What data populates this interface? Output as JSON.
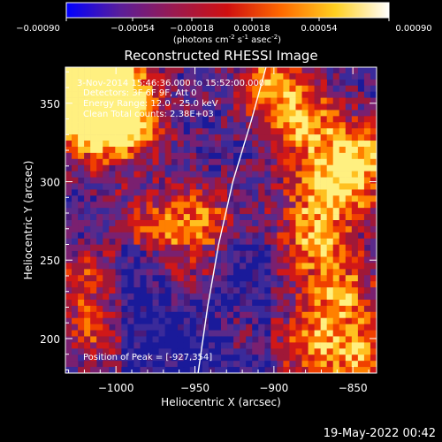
{
  "colorbar": {
    "ticks": [
      "-0.00090",
      "-0.00054",
      "-0.00018",
      "0.00018",
      "0.00054",
      "0.00090"
    ],
    "unit_main": "(photons cm",
    "unit_sup1": "-2",
    "unit_mid": " s",
    "unit_sup2": "-1",
    "unit_mid2": " asec",
    "unit_sup3": "-2",
    "unit_end": ")",
    "range": [
      -0.0009,
      0.0009
    ],
    "colors": [
      "#0000ff",
      "#5a1e9a",
      "#9a1a50",
      "#d01010",
      "#ff6a00",
      "#ffd020",
      "#ffffff"
    ]
  },
  "annotations": {
    "time": "3-Nov-2014 15:46:36.000 to 15:52:00.000",
    "detectors": "Detectors: 3F 6F 9F, Att 0",
    "energy": "Energy Range: 12.0 - 25.0 keV",
    "clean": "Clean   Total counts: 2.38E+03",
    "peak": "Position of Peak = [-927,354]"
  },
  "footer": {
    "timestamp": "19-May-2022 00:42"
  },
  "chart_data": {
    "type": "heatmap",
    "title": "Reconstructed RHESSI Image",
    "xlabel": "Heliocentric X (arcsec)",
    "ylabel": "Heliocentric Y (arcsec)",
    "xlim": [
      -1032,
      -835
    ],
    "ylim": [
      178,
      373
    ],
    "x_ticks": [
      -1000,
      -950,
      -900,
      -850
    ],
    "x_tick_labels": [
      "−1000",
      "−950",
      "−900",
      "−850"
    ],
    "y_ticks": [
      200,
      250,
      300,
      350
    ],
    "y_tick_labels": [
      "200",
      "250",
      "300",
      "350"
    ],
    "limb_points": [
      [
        -948,
        178
      ],
      [
        -942,
        220
      ],
      [
        -935,
        260
      ],
      [
        -926,
        300
      ],
      [
        -914,
        340
      ],
      [
        -905,
        373
      ]
    ],
    "peak": [
      -927,
      354
    ],
    "grid": false
  }
}
